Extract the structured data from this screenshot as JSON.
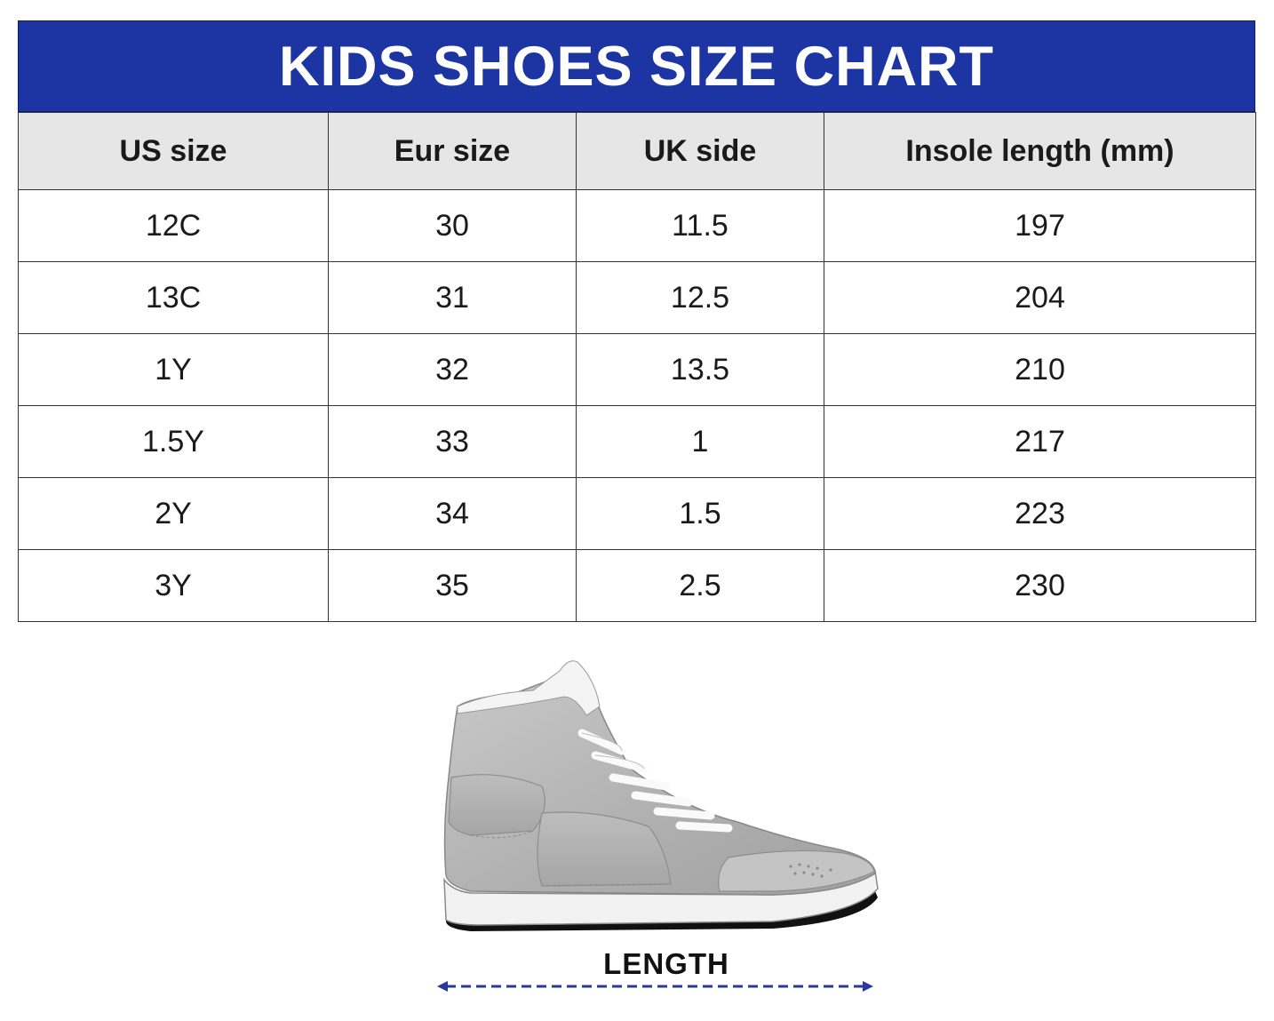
{
  "title": "KIDS SHOES SIZE CHART",
  "columns": [
    "US size",
    "Eur size",
    "UK side",
    "Insole length (mm)"
  ],
  "rows": [
    [
      "12C",
      "30",
      "11.5",
      "197"
    ],
    [
      "13C",
      "31",
      "12.5",
      "204"
    ],
    [
      "1Y",
      "32",
      "13.5",
      "210"
    ],
    [
      "1.5Y",
      "33",
      "1",
      "217"
    ],
    [
      "2Y",
      "34",
      "1.5",
      "223"
    ],
    [
      "3Y",
      "35",
      "2.5",
      "230"
    ]
  ],
  "illustration": {
    "icon": "sneaker-icon",
    "length_label": "LENGTH"
  },
  "colors": {
    "title_bg": "#1c35a3",
    "header_bg": "#e6e6e6",
    "arrow": "#2a3a9c"
  }
}
